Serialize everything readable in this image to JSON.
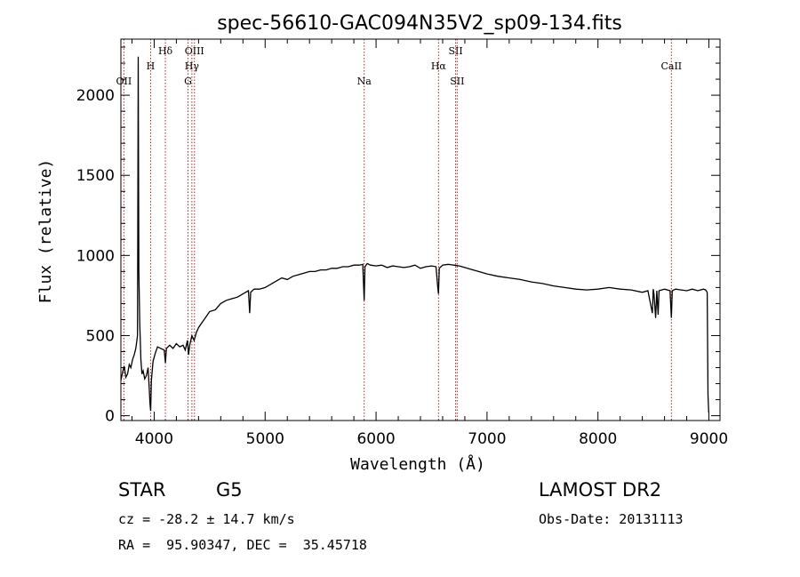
{
  "chart_data": {
    "type": "line",
    "title": "spec-56610-GAC094N35V2_sp09-134.fits",
    "xlabel": "Wavelength (Å)",
    "ylabel": "Flux (relative)",
    "xlim": [
      3700,
      9100
    ],
    "ylim": [
      -30,
      2350
    ],
    "x_ticks": [
      4000,
      5000,
      6000,
      7000,
      8000,
      9000
    ],
    "y_ticks": [
      0,
      500,
      1000,
      1500,
      2000
    ],
    "x_tick_labels": [
      "4000",
      "5000",
      "6000",
      "7000",
      "8000",
      "9000"
    ],
    "y_tick_labels": [
      "0",
      "500",
      "1000",
      "1500",
      "2000"
    ],
    "spectrum": {
      "x": [
        3700,
        3715,
        3730,
        3745,
        3760,
        3775,
        3790,
        3805,
        3820,
        3835,
        3850,
        3856,
        3862,
        3870,
        3880,
        3890,
        3900,
        3915,
        3930,
        3945,
        3955,
        3962,
        3968,
        3975,
        3990,
        4010,
        4030,
        4060,
        4090,
        4101,
        4110,
        4140,
        4170,
        4200,
        4230,
        4260,
        4280,
        4300,
        4310,
        4320,
        4340,
        4360,
        4380,
        4400,
        4430,
        4460,
        4500,
        4550,
        4600,
        4650,
        4700,
        4750,
        4800,
        4850,
        4861,
        4870,
        4900,
        4950,
        5000,
        5050,
        5100,
        5150,
        5200,
        5250,
        5300,
        5350,
        5400,
        5450,
        5500,
        5550,
        5600,
        5650,
        5700,
        5750,
        5800,
        5850,
        5880,
        5893,
        5900,
        5920,
        5950,
        6000,
        6050,
        6100,
        6150,
        6200,
        6250,
        6300,
        6350,
        6400,
        6450,
        6500,
        6540,
        6556,
        6563,
        6570,
        6600,
        6650,
        6700,
        6750,
        6800,
        6850,
        6900,
        6950,
        7000,
        7100,
        7200,
        7300,
        7400,
        7500,
        7600,
        7700,
        7800,
        7900,
        8000,
        8100,
        8200,
        8300,
        8400,
        8450,
        8490,
        8498,
        8505,
        8520,
        8530,
        8542,
        8550,
        8600,
        8650,
        8662,
        8670,
        8700,
        8750,
        8800,
        8850,
        8900,
        8950,
        8970,
        8985,
        8992,
        8998
      ],
      "y": [
        220,
        270,
        310,
        240,
        260,
        320,
        300,
        350,
        380,
        420,
        500,
        2240,
        900,
        580,
        350,
        260,
        280,
        230,
        250,
        300,
        180,
        80,
        30,
        220,
        340,
        390,
        430,
        420,
        410,
        330,
        420,
        440,
        420,
        450,
        430,
        440,
        410,
        470,
        380,
        440,
        500,
        470,
        520,
        550,
        580,
        610,
        650,
        660,
        700,
        720,
        730,
        740,
        760,
        780,
        640,
        770,
        790,
        790,
        800,
        820,
        840,
        860,
        850,
        870,
        880,
        890,
        900,
        900,
        910,
        910,
        920,
        920,
        930,
        930,
        940,
        940,
        945,
        720,
        930,
        950,
        940,
        935,
        940,
        925,
        935,
        930,
        925,
        930,
        940,
        920,
        930,
        935,
        930,
        800,
        760,
        920,
        940,
        945,
        940,
        935,
        925,
        915,
        905,
        895,
        885,
        870,
        860,
        850,
        835,
        825,
        810,
        800,
        790,
        785,
        790,
        800,
        790,
        785,
        770,
        780,
        640,
        790,
        760,
        610,
        780,
        630,
        780,
        790,
        780,
        610,
        780,
        790,
        785,
        780,
        790,
        780,
        790,
        785,
        770,
        130,
        20
      ]
    },
    "line_markers": [
      {
        "label": "OII",
        "wavelength": 3727,
        "tier": 3
      },
      {
        "label": "H",
        "wavelength": 3968,
        "tier": 2
      },
      {
        "label": "Hδ",
        "wavelength": 4101,
        "tier": 1
      },
      {
        "label": "OIII",
        "wavelength": 4363,
        "tier": 1
      },
      {
        "label": "Hγ",
        "wavelength": 4340,
        "tier": 2
      },
      {
        "label": "G",
        "wavelength": 4305,
        "tier": 3
      },
      {
        "label": "Na",
        "wavelength": 5893,
        "tier": 3
      },
      {
        "label": "Hα",
        "wavelength": 6563,
        "tier": 2
      },
      {
        "label": "SII",
        "wavelength": 6717,
        "tier": 1
      },
      {
        "label": "SII",
        "wavelength": 6731,
        "tier": 3
      },
      {
        "label": "CaII",
        "wavelength": 8662,
        "tier": 2
      }
    ]
  },
  "info": {
    "object_type": "STAR",
    "subclass": "G5",
    "survey": "LAMOST DR2",
    "cz": "cz = -28.2 ± 14.7 km/s",
    "obs_date": "Obs-Date: 20131113",
    "coords": "RA =  95.90347, DEC =  35.45718"
  },
  "colors": {
    "spectrum": "#000000",
    "axes": "#000000",
    "line_markers": "#b22222"
  }
}
